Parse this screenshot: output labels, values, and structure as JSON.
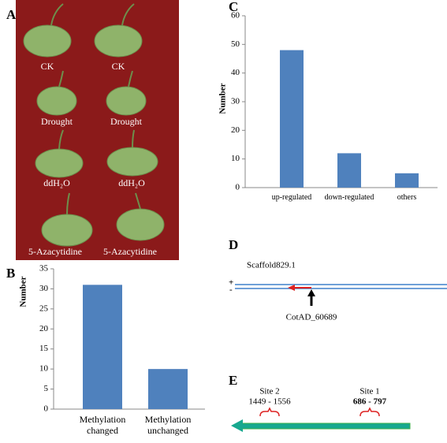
{
  "panel_labels": [
    "A",
    "B",
    "C",
    "D",
    "E"
  ],
  "photo": {
    "labels": [
      "CK",
      "CK",
      "Drought",
      "Drought",
      "ddH₂O",
      "ddH₂O",
      "5-Azacytidine",
      "5-Azacytidine"
    ]
  },
  "chart_data": [
    {
      "type": "bar",
      "ylabel": "Number",
      "categories": [
        "Methylation changed",
        "Methylation unchanged"
      ],
      "values": [
        31,
        10
      ],
      "color": "#4f81bd",
      "ylim": [
        0,
        35
      ],
      "yticks": [
        0,
        5,
        10,
        15,
        20,
        25,
        30,
        35
      ]
    },
    {
      "type": "bar",
      "ylabel": "Number",
      "categories": [
        "up-regulated",
        "down-regulated",
        "others"
      ],
      "values": [
        48,
        12,
        5
      ],
      "color": "#4f81bd",
      "ylim": [
        0,
        60
      ],
      "yticks": [
        0,
        10,
        20,
        30,
        40,
        50,
        60
      ]
    }
  ],
  "gene_diagram": {
    "scaffold": "Scaffold829.1",
    "plus": "+",
    "minus": "-",
    "gene": "CotAD_60689"
  },
  "site_diagram": {
    "sites": [
      {
        "name": "Site 2",
        "range": "1449 - 1556"
      },
      {
        "name": "Site 1",
        "range": "686 - 797"
      }
    ]
  }
}
